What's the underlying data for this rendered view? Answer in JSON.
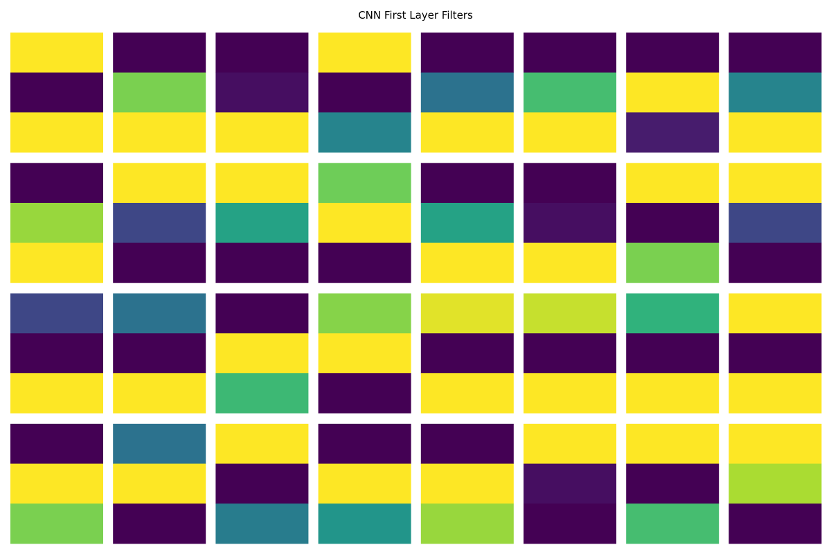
{
  "chart_data": {
    "type": "heatmap",
    "title": "CNN First Layer Filters",
    "layout": {
      "rows": 4,
      "cols": 8
    },
    "colormap": "viridis",
    "value_range": [
      0,
      1
    ],
    "axes_visible": false,
    "filters": [
      [
        1.0,
        0.0,
        1.0
      ],
      [
        0.0,
        0.8,
        1.0
      ],
      [
        0.0,
        0.05,
        1.0
      ],
      [
        1.0,
        0.0,
        0.45
      ],
      [
        0.0,
        0.38,
        1.0
      ],
      [
        0.0,
        0.7,
        1.0
      ],
      [
        0.0,
        1.0,
        0.1
      ],
      [
        0.0,
        0.45,
        1.0
      ],
      [
        0.0,
        0.85,
        1.0
      ],
      [
        1.0,
        0.22,
        0.0
      ],
      [
        1.0,
        0.58,
        0.0
      ],
      [
        0.78,
        1.0,
        0.0
      ],
      [
        0.0,
        0.58,
        1.0
      ],
      [
        0.0,
        0.05,
        1.0
      ],
      [
        1.0,
        0.0,
        0.8
      ],
      [
        1.0,
        0.22,
        0.0
      ],
      [
        0.22,
        0.0,
        1.0
      ],
      [
        0.38,
        0.0,
        1.0
      ],
      [
        0.0,
        1.0,
        0.68
      ],
      [
        0.82,
        1.0,
        0.0
      ],
      [
        0.96,
        0.0,
        1.0
      ],
      [
        0.92,
        0.0,
        1.0
      ],
      [
        0.65,
        0.0,
        1.0
      ],
      [
        1.0,
        0.0,
        1.0
      ],
      [
        0.0,
        1.0,
        0.8
      ],
      [
        0.38,
        1.0,
        0.0
      ],
      [
        1.0,
        0.0,
        0.42
      ],
      [
        0.0,
        1.0,
        0.52
      ],
      [
        0.0,
        1.0,
        0.85
      ],
      [
        1.0,
        0.05,
        0.0
      ],
      [
        1.0,
        0.0,
        0.7
      ],
      [
        1.0,
        0.88,
        0.0
      ]
    ]
  }
}
